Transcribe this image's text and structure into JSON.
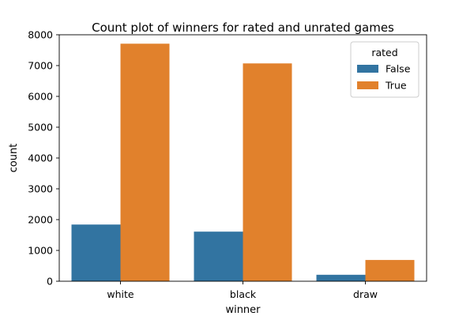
{
  "chart_data": {
    "type": "bar",
    "title": "Count plot of winners for rated and unrated games",
    "xlabel": "winner",
    "ylabel": "count",
    "categories": [
      "white",
      "black",
      "draw"
    ],
    "series": [
      {
        "name": "False",
        "color": "#3274a1",
        "values": [
          1840,
          1610,
          210
        ]
      },
      {
        "name": "True",
        "color": "#e1812c",
        "values": [
          7710,
          7070,
          690
        ]
      }
    ],
    "ylim": [
      0,
      8000
    ],
    "yticks": [
      0,
      1000,
      2000,
      3000,
      4000,
      5000,
      6000,
      7000,
      8000
    ],
    "grid": false,
    "legend": {
      "title": "rated",
      "placement": "top-right"
    }
  }
}
